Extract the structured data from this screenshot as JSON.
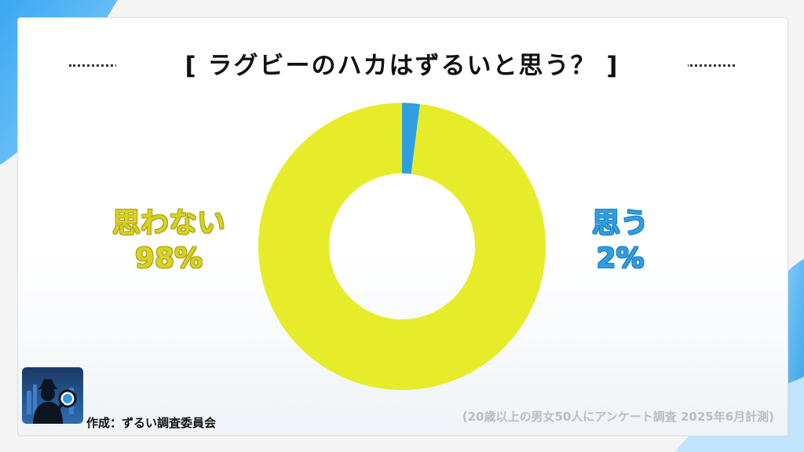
{
  "title": "[ ラグビーのハカはずるいと思う？ ]",
  "credit": "作成：ずるい調査委員会",
  "note": "(20歳以上の男女50人にアンケート調査 2025年6月計測)",
  "colors": {
    "no": "#e6ec2a",
    "yes": "#2f9fe2",
    "background_accent": "#5cb8f5"
  },
  "icons": {
    "logo": "detective-magnifier-icon"
  },
  "chart_data": {
    "type": "pie",
    "style": "donut",
    "title": "[ ラグビーのハカはずるいと思う？ ]",
    "slices": [
      {
        "label": "思う",
        "value": 2,
        "percent_label": "2%",
        "color": "#2f9fe2"
      },
      {
        "label": "思わない",
        "value": 98,
        "percent_label": "98%",
        "color": "#e6ec2a"
      }
    ],
    "legend": "none",
    "grid": false
  }
}
